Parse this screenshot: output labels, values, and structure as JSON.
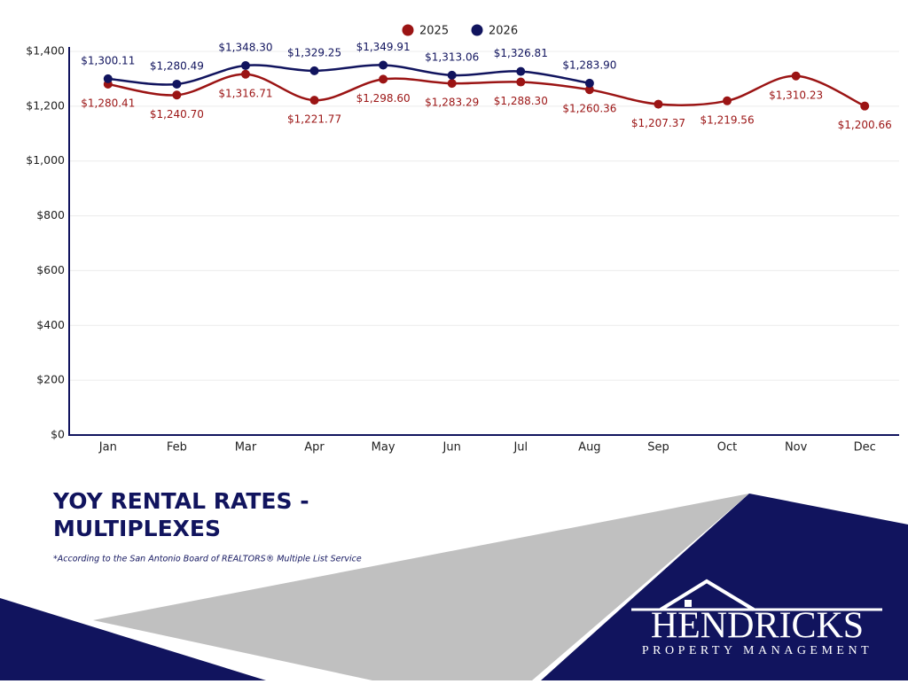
{
  "chart_data": {
    "type": "line",
    "title": "YOY RENTAL RATES - MULTIPLEXES",
    "footnote": "*According to the San Antonio Board of REALTORS® Multiple List Service",
    "categories": [
      "Jan",
      "Feb",
      "Mar",
      "Apr",
      "May",
      "Jun",
      "Jul",
      "Aug",
      "Sep",
      "Oct",
      "Nov",
      "Dec"
    ],
    "series": [
      {
        "name": "2025",
        "color": "#9b1414",
        "values": [
          1280.41,
          1240.7,
          1316.71,
          1221.77,
          1298.6,
          1283.29,
          1288.3,
          1260.36,
          1207.37,
          1219.56,
          1310.23,
          1200.66
        ],
        "value_labels": [
          "$1,280.41",
          "$1,240.70",
          "$1,316.71",
          "$1,221.77",
          "$1,298.60",
          "$1,283.29",
          "$1,288.30",
          "$1,260.36",
          "$1,207.37",
          "$1,219.56",
          "$1,310.23",
          "$1,200.66"
        ]
      },
      {
        "name": "2026",
        "color": "#11145e",
        "values": [
          1300.11,
          1280.49,
          1348.3,
          1329.25,
          1349.91,
          1313.06,
          1326.81,
          1283.9,
          null,
          null,
          null,
          null
        ],
        "value_labels": [
          "$1,300.11",
          "$1,280.49",
          "$1,348.30",
          "$1,329.25",
          "$1,349.91",
          "$1,313.06",
          "$1,326.81",
          "$1,283.90",
          null,
          null,
          null,
          null
        ]
      }
    ],
    "ylim": [
      0,
      1400
    ],
    "yticks": [
      {
        "value": 0,
        "label": "$0"
      },
      {
        "value": 200,
        "label": "$200"
      },
      {
        "value": 400,
        "label": "$400"
      },
      {
        "value": 600,
        "label": "$600"
      },
      {
        "value": 800,
        "label": "$800"
      },
      {
        "value": 1000,
        "label": "$1,000"
      },
      {
        "value": 1200,
        "label": "$1,200"
      },
      {
        "value": 1400,
        "label": "$1,400"
      }
    ],
    "grid": true,
    "legend": "top"
  },
  "logo": {
    "name": "HENDRICKS",
    "tagline": "PROPERTY MANAGEMENT"
  }
}
